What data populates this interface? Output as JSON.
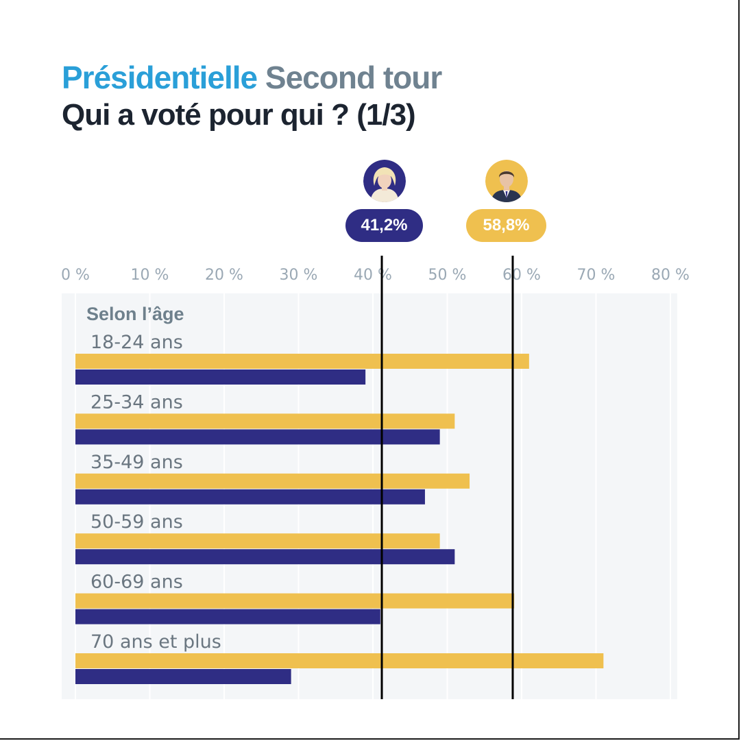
{
  "header": {
    "title_part1": "Présidentielle",
    "title_part2": "Second tour",
    "subtitle": "Qui a voté pour qui ? (1/3)"
  },
  "candidates": [
    {
      "key": "lepen",
      "icon": "le-pen-avatar-icon",
      "color": "#2f2d84",
      "result_label": "41,2%",
      "result": 41.2
    },
    {
      "key": "macron",
      "icon": "macron-avatar-icon",
      "color": "#efc04f",
      "result_label": "58,8%",
      "result": 58.8
    }
  ],
  "colors": {
    "macron": "#efc04f",
    "lepen": "#2f2d84",
    "grid": "#ffffff",
    "panel": "#f4f6f8",
    "tick": "#9aa8b4",
    "reference_line": "#000000"
  },
  "chart_data": {
    "type": "bar",
    "orientation": "horizontal",
    "group_label": "Selon l’âge",
    "categories": [
      "18-24 ans",
      "25-34 ans",
      "35-49 ans",
      "50-59 ans",
      "60-69 ans",
      "70 ans et plus"
    ],
    "series": [
      {
        "key": "macron",
        "values": [
          61,
          51,
          53,
          49,
          59,
          71
        ]
      },
      {
        "key": "lepen",
        "values": [
          39,
          49,
          47,
          51,
          41,
          29
        ]
      }
    ],
    "x_ticks": [
      0,
      10,
      20,
      30,
      40,
      50,
      60,
      70,
      80
    ],
    "x_tick_labels": [
      "0 %",
      "10 %",
      "20 %",
      "30 %",
      "40 %",
      "50 %",
      "60 %",
      "70 %",
      "80 %"
    ],
    "xlim": [
      0,
      80
    ],
    "reference_lines": [
      41.2,
      58.8
    ],
    "grid": true
  }
}
